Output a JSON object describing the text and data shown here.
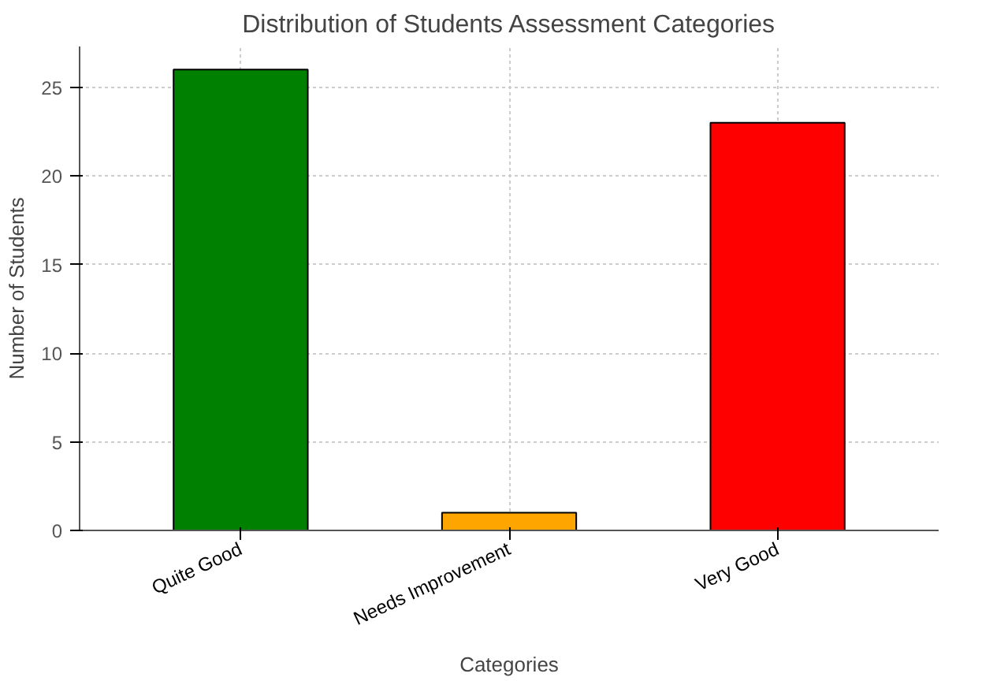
{
  "chart_data": {
    "type": "bar",
    "title": "Distribution of Students Assessment Categories",
    "xlabel": "Categories",
    "ylabel": "Number of Students",
    "categories": [
      "Quite Good",
      "Needs Improvement",
      "Very Good"
    ],
    "values": [
      26,
      1,
      23
    ],
    "colors": [
      "#008000",
      "#ffa500",
      "#ff0000"
    ],
    "ylim": [
      0,
      27.3
    ],
    "yticks": [
      0,
      5,
      10,
      15,
      20,
      25
    ],
    "grid": true
  }
}
